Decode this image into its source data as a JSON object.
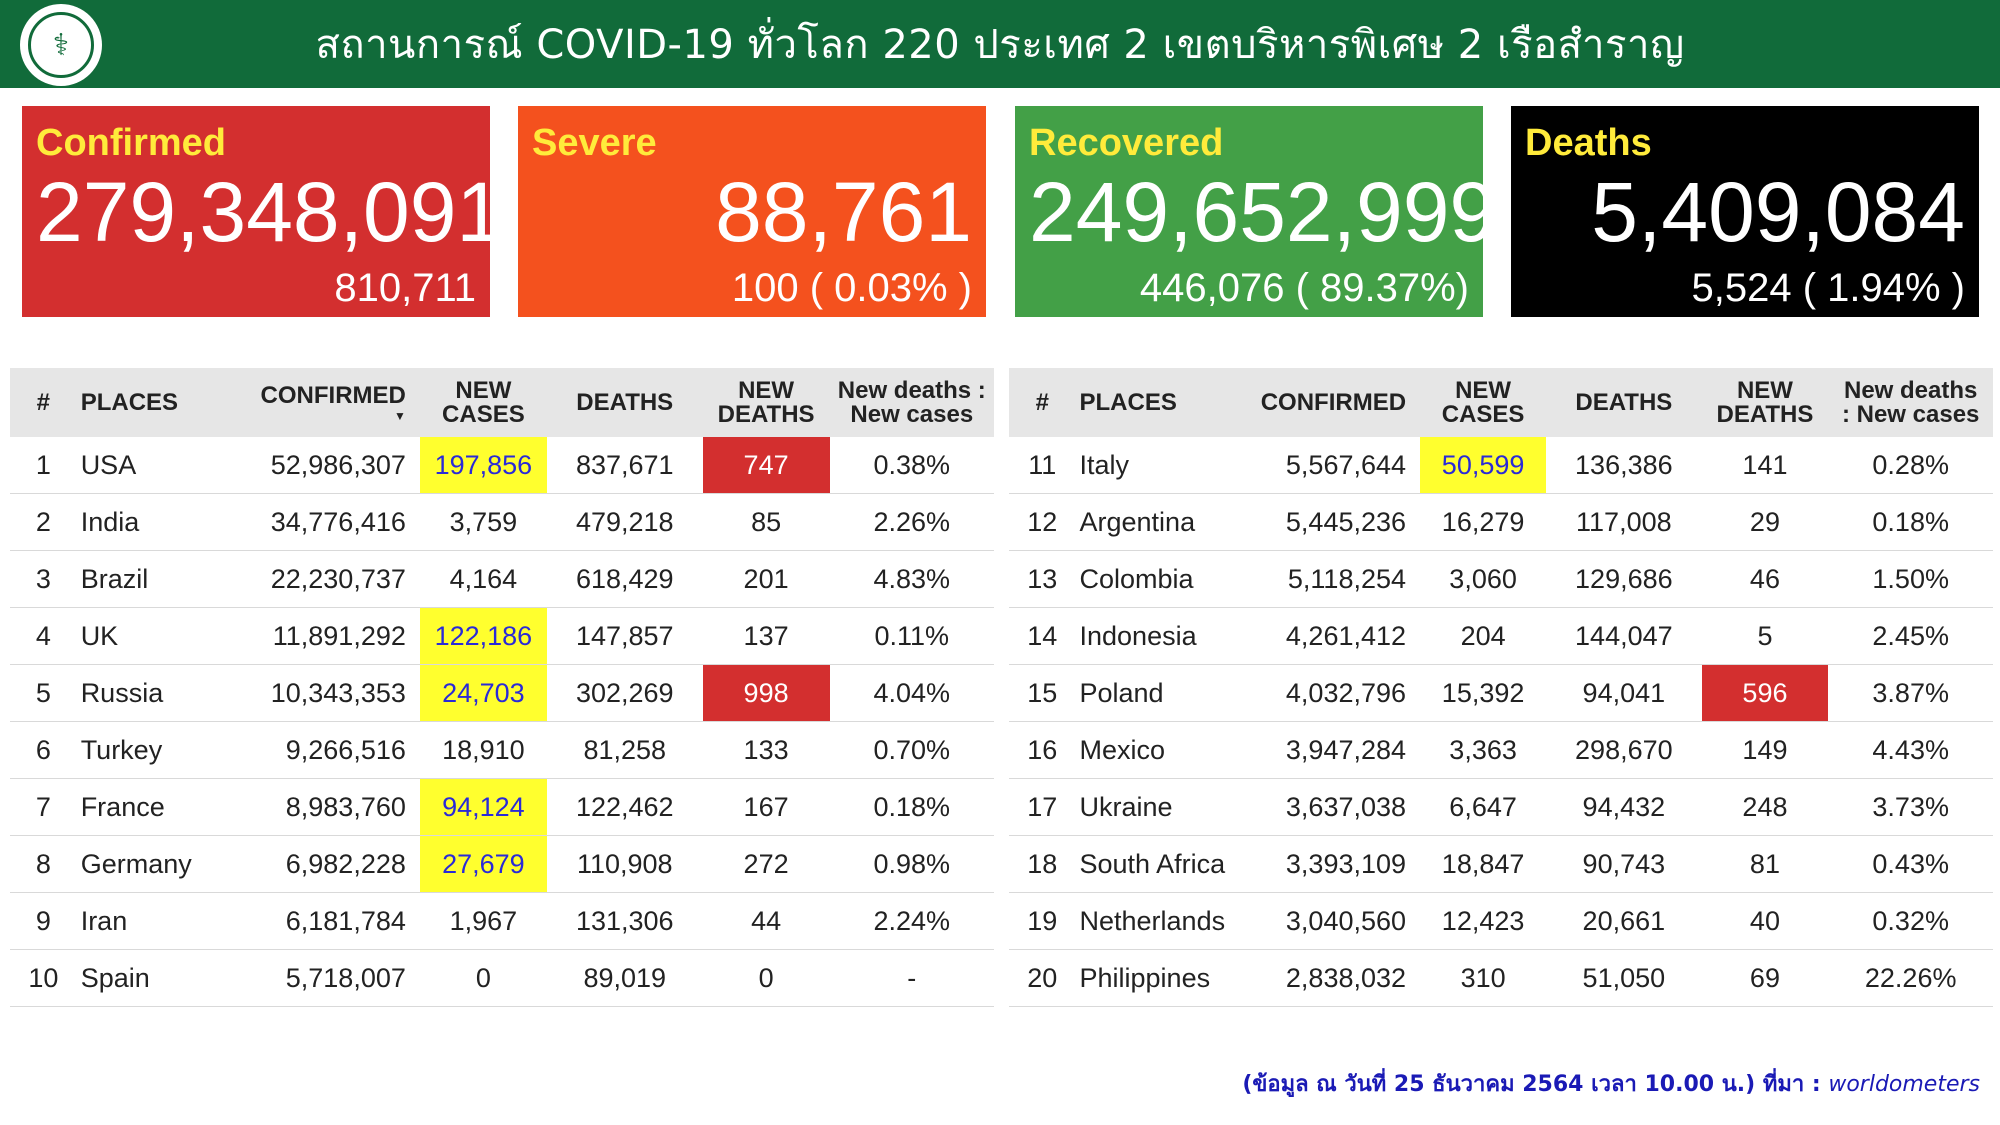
{
  "header": {
    "logo_glyph": "⚕",
    "title": "สถานการณ์ COVID-19 ทั่วโลก 220 ประเทศ 2 เขตบริหารพิเศษ 2 เรือสำราญ"
  },
  "cards": {
    "confirmed": {
      "label": "Confirmed",
      "total": "279,348,091",
      "sub": "810,711",
      "color": "#d32f2f"
    },
    "severe": {
      "label": "Severe",
      "total": "88,761",
      "sub": "100 ( 0.03% )",
      "color": "#f4511e"
    },
    "recovered": {
      "label": "Recovered",
      "total": "249,652,999",
      "sub": "446,076 ( 89.37%)",
      "color": "#43a047"
    },
    "deaths": {
      "label": "Deaths",
      "total": "5,409,084",
      "sub": "5,524 ( 1.94% )",
      "color": "#000000"
    }
  },
  "table_headers": {
    "rank": "#",
    "places": "PLACES",
    "confirmed": "CONFIRMED",
    "sort_arrow": "▼",
    "new_cases_1": "NEW",
    "new_cases_2": "CASES",
    "deaths": "DEATHS",
    "new_deaths_1": "NEW",
    "new_deaths_2": "DEATHS",
    "ratio_left_1": "New deaths :",
    "ratio_left_2": "New cases",
    "ratio_right_1": "New deaths",
    "ratio_right_2": ": New cases"
  },
  "rows_left": [
    {
      "rank": "1",
      "place": "USA",
      "confirmed": "52,986,307",
      "new_cases": "197,856",
      "deaths": "837,671",
      "new_deaths": "747",
      "ratio": "0.38%",
      "hl_new": true,
      "hl_nd": true
    },
    {
      "rank": "2",
      "place": "India",
      "confirmed": "34,776,416",
      "new_cases": "3,759",
      "deaths": "479,218",
      "new_deaths": "85",
      "ratio": "2.26%",
      "hl_new": false,
      "hl_nd": false
    },
    {
      "rank": "3",
      "place": "Brazil",
      "confirmed": "22,230,737",
      "new_cases": "4,164",
      "deaths": "618,429",
      "new_deaths": "201",
      "ratio": "4.83%",
      "hl_new": false,
      "hl_nd": false
    },
    {
      "rank": "4",
      "place": "UK",
      "confirmed": "11,891,292",
      "new_cases": "122,186",
      "deaths": "147,857",
      "new_deaths": "137",
      "ratio": "0.11%",
      "hl_new": true,
      "hl_nd": false
    },
    {
      "rank": "5",
      "place": "Russia",
      "confirmed": "10,343,353",
      "new_cases": "24,703",
      "deaths": "302,269",
      "new_deaths": "998",
      "ratio": "4.04%",
      "hl_new": true,
      "hl_nd": true
    },
    {
      "rank": "6",
      "place": "Turkey",
      "confirmed": "9,266,516",
      "new_cases": "18,910",
      "deaths": "81,258",
      "new_deaths": "133",
      "ratio": "0.70%",
      "hl_new": false,
      "hl_nd": false
    },
    {
      "rank": "7",
      "place": "France",
      "confirmed": "8,983,760",
      "new_cases": "94,124",
      "deaths": "122,462",
      "new_deaths": "167",
      "ratio": "0.18%",
      "hl_new": true,
      "hl_nd": false
    },
    {
      "rank": "8",
      "place": "Germany",
      "confirmed": "6,982,228",
      "new_cases": "27,679",
      "deaths": "110,908",
      "new_deaths": "272",
      "ratio": "0.98%",
      "hl_new": true,
      "hl_nd": false
    },
    {
      "rank": "9",
      "place": "Iran",
      "confirmed": "6,181,784",
      "new_cases": "1,967",
      "deaths": "131,306",
      "new_deaths": "44",
      "ratio": "2.24%",
      "hl_new": false,
      "hl_nd": false
    },
    {
      "rank": "10",
      "place": "Spain",
      "confirmed": "5,718,007",
      "new_cases": "0",
      "deaths": "89,019",
      "new_deaths": "0",
      "ratio": "-",
      "hl_new": false,
      "hl_nd": false
    }
  ],
  "rows_right": [
    {
      "rank": "11",
      "place": "Italy",
      "confirmed": "5,567,644",
      "new_cases": "50,599",
      "deaths": "136,386",
      "new_deaths": "141",
      "ratio": "0.28%",
      "hl_new": true,
      "hl_nd": false
    },
    {
      "rank": "12",
      "place": "Argentina",
      "confirmed": "5,445,236",
      "new_cases": "16,279",
      "deaths": "117,008",
      "new_deaths": "29",
      "ratio": "0.18%",
      "hl_new": false,
      "hl_nd": false
    },
    {
      "rank": "13",
      "place": "Colombia",
      "confirmed": "5,118,254",
      "new_cases": "3,060",
      "deaths": "129,686",
      "new_deaths": "46",
      "ratio": "1.50%",
      "hl_new": false,
      "hl_nd": false
    },
    {
      "rank": "14",
      "place": "Indonesia",
      "confirmed": "4,261,412",
      "new_cases": "204",
      "deaths": "144,047",
      "new_deaths": "5",
      "ratio": "2.45%",
      "hl_new": false,
      "hl_nd": false
    },
    {
      "rank": "15",
      "place": "Poland",
      "confirmed": "4,032,796",
      "new_cases": "15,392",
      "deaths": "94,041",
      "new_deaths": "596",
      "ratio": "3.87%",
      "hl_new": false,
      "hl_nd": true
    },
    {
      "rank": "16",
      "place": "Mexico",
      "confirmed": "3,947,284",
      "new_cases": "3,363",
      "deaths": "298,670",
      "new_deaths": "149",
      "ratio": "4.43%",
      "hl_new": false,
      "hl_nd": false
    },
    {
      "rank": "17",
      "place": "Ukraine",
      "confirmed": "3,637,038",
      "new_cases": "6,647",
      "deaths": "94,432",
      "new_deaths": "248",
      "ratio": "3.73%",
      "hl_new": false,
      "hl_nd": false
    },
    {
      "rank": "18",
      "place": "South Africa",
      "confirmed": "3,393,109",
      "new_cases": "18,847",
      "deaths": "90,743",
      "new_deaths": "81",
      "ratio": "0.43%",
      "hl_new": false,
      "hl_nd": false
    },
    {
      "rank": "19",
      "place": "Netherlands",
      "confirmed": "3,040,560",
      "new_cases": "12,423",
      "deaths": "20,661",
      "new_deaths": "40",
      "ratio": "0.32%",
      "hl_new": false,
      "hl_nd": false
    },
    {
      "rank": "20",
      "place": "Philippines",
      "confirmed": "2,838,032",
      "new_cases": "310",
      "deaths": "51,050",
      "new_deaths": "69",
      "ratio": "22.26%",
      "hl_new": false,
      "hl_nd": false
    }
  ],
  "colors": {
    "header_green": "#116b3a",
    "highlight_yellow": "#ffff2e",
    "highlight_red": "#d32f2f",
    "new_cases_blue": "#2a2ad8",
    "deaths_red": "#e53935"
  },
  "footer": {
    "text": "(ข้อมูล ณ วันที่ 25 ธันวาคม 2564 เวลา 10.00 น.) ที่มา : ",
    "source": "worldometers"
  }
}
